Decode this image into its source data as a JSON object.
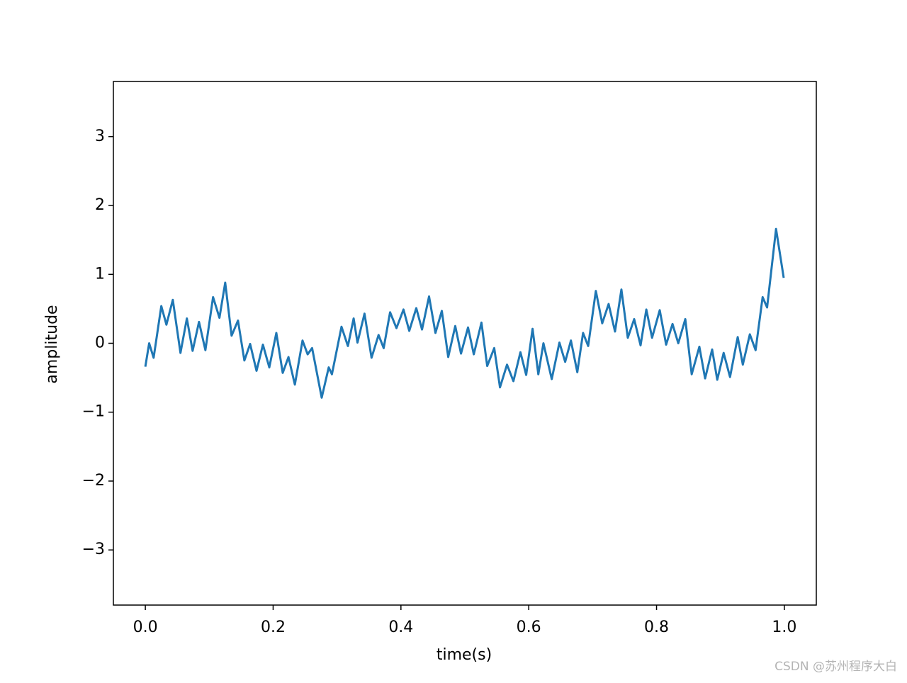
{
  "chart_data": {
    "type": "line",
    "xlabel": "time(s)",
    "ylabel": "amplitude",
    "watermark": "CSDN @苏州程序大白",
    "color": "#1f77b4",
    "x": [
      0,
      0.006,
      0.013,
      0.025,
      0.033,
      0.043,
      0.055,
      0.065,
      0.074,
      0.084,
      0.094,
      0.106,
      0.116,
      0.125,
      0.135,
      0.145,
      0.155,
      0.164,
      0.174,
      0.184,
      0.194,
      0.205,
      0.215,
      0.224,
      0.234,
      0.246,
      0.254,
      0.261,
      0.276,
      0.287,
      0.292,
      0.307,
      0.317,
      0.326,
      0.332,
      0.343,
      0.354,
      0.365,
      0.373,
      0.383,
      0.393,
      0.404,
      0.413,
      0.424,
      0.433,
      0.444,
      0.454,
      0.464,
      0.474,
      0.485,
      0.494,
      0.505,
      0.514,
      0.526,
      0.535,
      0.546,
      0.555,
      0.566,
      0.576,
      0.587,
      0.596,
      0.606,
      0.615,
      0.623,
      0.636,
      0.648,
      0.657,
      0.666,
      0.676,
      0.685,
      0.693,
      0.705,
      0.715,
      0.725,
      0.735,
      0.745,
      0.755,
      0.765,
      0.775,
      0.784,
      0.793,
      0.805,
      0.815,
      0.825,
      0.834,
      0.845,
      0.855,
      0.867,
      0.876,
      0.887,
      0.895,
      0.905,
      0.915,
      0.927,
      0.935,
      0.946,
      0.955,
      0.966,
      0.973,
      0.987,
      0.999
    ],
    "values": [
      -0.34,
      0.0,
      -0.21,
      0.54,
      0.27,
      0.63,
      -0.14,
      0.36,
      -0.11,
      0.31,
      -0.1,
      0.67,
      0.37,
      0.88,
      0.11,
      0.33,
      -0.25,
      -0.01,
      -0.4,
      -0.02,
      -0.35,
      0.15,
      -0.43,
      -0.2,
      -0.6,
      0.04,
      -0.16,
      -0.07,
      -0.79,
      -0.35,
      -0.45,
      0.24,
      -0.04,
      0.36,
      0.01,
      0.43,
      -0.21,
      0.12,
      -0.07,
      0.45,
      0.22,
      0.49,
      0.18,
      0.51,
      0.2,
      0.68,
      0.15,
      0.47,
      -0.2,
      0.25,
      -0.15,
      0.23,
      -0.16,
      0.3,
      -0.33,
      -0.07,
      -0.64,
      -0.31,
      -0.55,
      -0.13,
      -0.46,
      0.21,
      -0.45,
      0.0,
      -0.52,
      0.01,
      -0.27,
      0.04,
      -0.42,
      0.15,
      -0.04,
      0.76,
      0.29,
      0.57,
      0.17,
      0.78,
      0.08,
      0.35,
      -0.03,
      0.49,
      0.08,
      0.48,
      -0.02,
      0.28,
      0.0,
      0.35,
      -0.45,
      -0.05,
      -0.51,
      -0.09,
      -0.53,
      -0.14,
      -0.49,
      0.09,
      -0.31,
      0.13,
      -0.1,
      0.67,
      0.52,
      1.66,
      0.95
    ],
    "xlim": [
      -0.05,
      1.05
    ],
    "ylim": [
      -3.8,
      3.8
    ],
    "xticks": [
      {
        "value": 0,
        "label": "0.0"
      },
      0.2,
      0.4,
      0.6,
      0.8,
      {
        "value": 1,
        "label": "1.0"
      }
    ],
    "yticks": [
      {
        "value": -3,
        "label": "−3"
      },
      {
        "value": -2,
        "label": "−2"
      },
      {
        "value": -1,
        "label": "−1"
      },
      0,
      1,
      2,
      3
    ]
  }
}
